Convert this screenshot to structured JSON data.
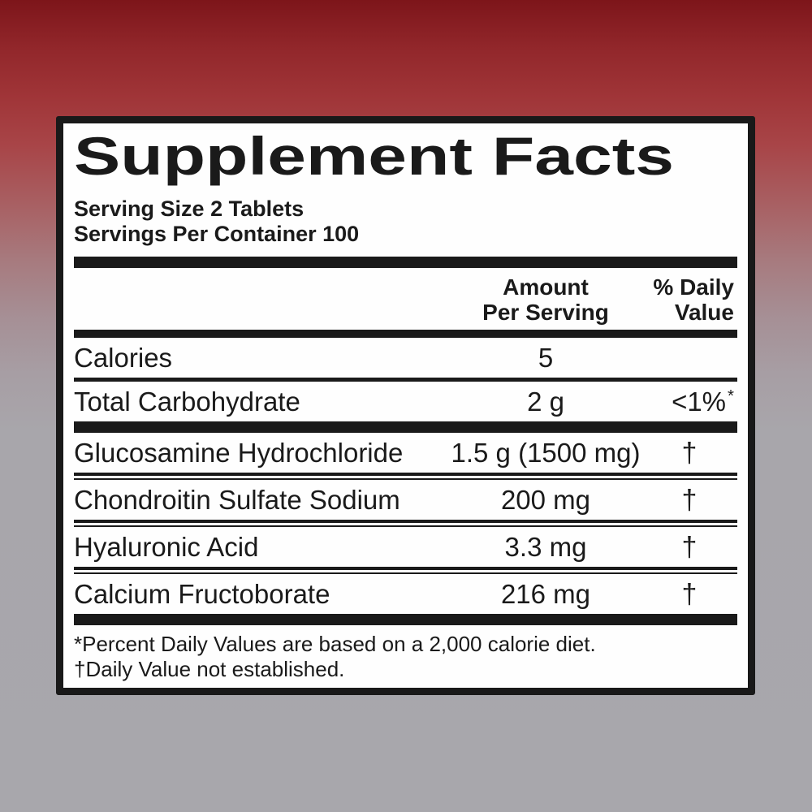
{
  "colors": {
    "background_top_red": "#7d151a",
    "background_mid_red": "#a85f62",
    "background_bottom_gray": "#a8a7ac",
    "panel_background": "#fefefe",
    "border_and_text": "#1a1a1a"
  },
  "label": {
    "title": "Supplement Facts",
    "serving_size": "Serving Size 2 Tablets",
    "servings_per_container": "Servings Per Container 100",
    "columns": {
      "amount_line1": "Amount",
      "amount_line2": "Per Serving",
      "dv_line1": "% Daily",
      "dv_line2": "Value"
    },
    "rows": [
      {
        "name": "Calories",
        "amount": "5",
        "dv": ""
      },
      {
        "name": "Total Carbohydrate",
        "amount": "2 g",
        "dv": "<1%",
        "dv_sup": "*"
      },
      {
        "name": "Glucosamine Hydrochloride",
        "amount": "1.5 g (1500 mg)",
        "dv": "†"
      },
      {
        "name": "Chondroitin Sulfate Sodium",
        "amount": "200 mg",
        "dv": "†"
      },
      {
        "name": "Hyaluronic Acid",
        "amount": "3.3 mg",
        "dv": "†"
      },
      {
        "name": "Calcium Fructoborate",
        "amount": "216 mg",
        "dv": "†"
      }
    ],
    "footnotes": {
      "percent_daily_value": "*Percent Daily Values are based on a 2,000 calorie diet.",
      "daily_value_not_established": "†Daily Value not established."
    }
  }
}
